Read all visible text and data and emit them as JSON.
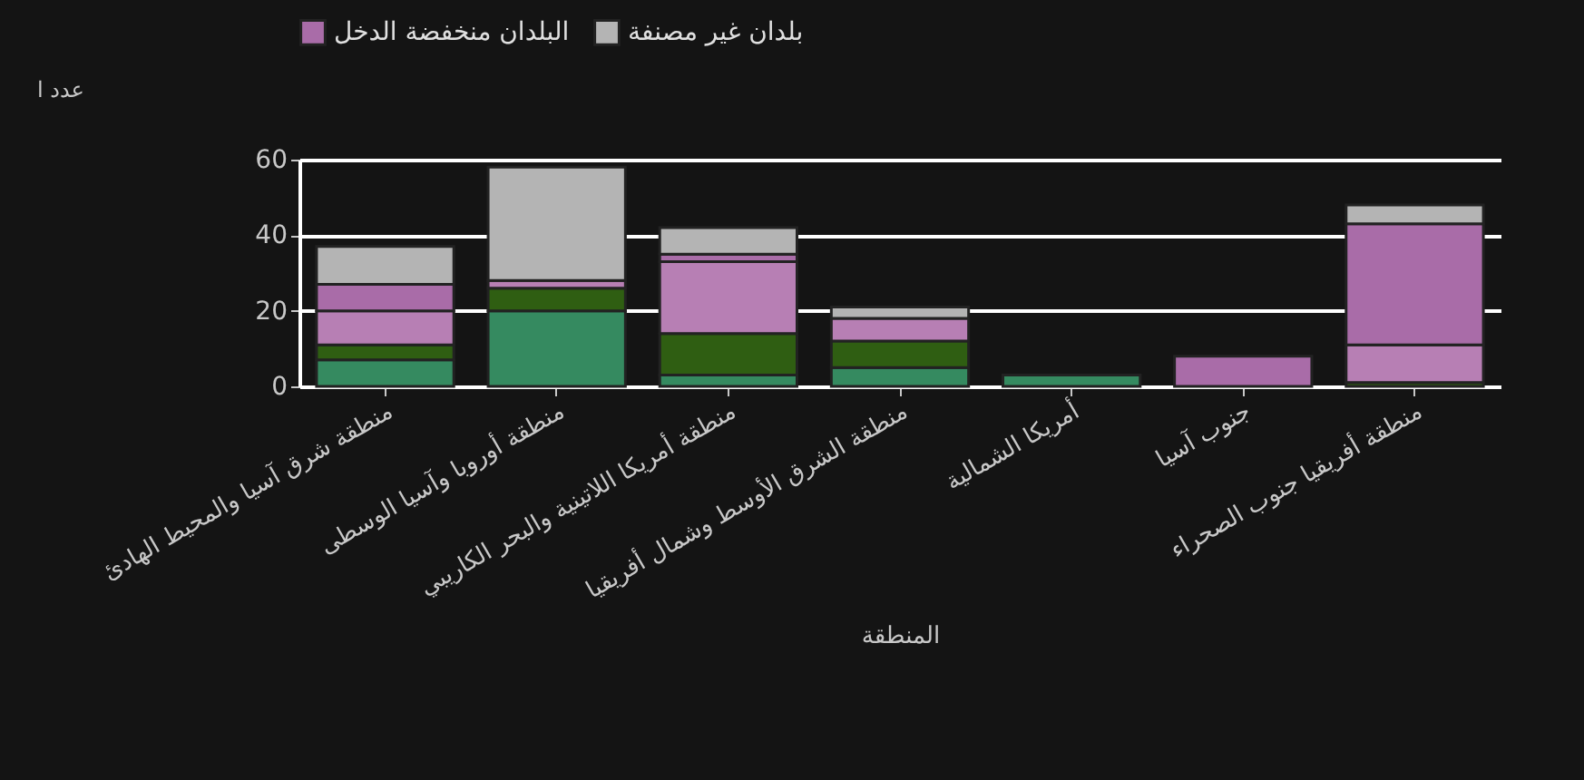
{
  "chart_data": {
    "type": "bar",
    "stacked": true,
    "xlabel": "المنطقة",
    "ylabel": "عدد ا",
    "categories": [
      "منطقة شرق آسيا والمحيط الهادئ",
      "منطقة أوروبا وآسيا الوسطى",
      "منطقة أمريكا اللاتينية والبحر الكاريبي",
      "منطقة الشرق الأوسط وشمال أفريقيا",
      "أمريكا الشمالية",
      "جنوب آسيا",
      "منطقة أفريقيا جنوب الصحراء"
    ],
    "series": [
      {
        "color": "#358a60",
        "values": [
          7,
          20,
          3,
          5,
          3,
          null,
          null
        ]
      },
      {
        "color": "#2f5e12",
        "values": [
          4,
          6,
          11,
          7,
          null,
          null,
          1
        ]
      },
      {
        "color": "#b77fb4",
        "values": [
          9,
          2,
          19,
          6,
          null,
          null,
          10
        ]
      },
      {
        "name": "البلدان منخفضة الدخل",
        "color": "#a96ca8",
        "values": [
          7,
          null,
          2,
          null,
          null,
          8,
          32
        ]
      },
      {
        "name": "بلدان غير مصنفة",
        "color": "#b4b4b4",
        "values": [
          10,
          30,
          7,
          3,
          null,
          null,
          5
        ]
      }
    ],
    "ylim": [
      0,
      60
    ],
    "yticks": [
      0,
      20,
      40,
      60
    ],
    "grid": "y",
    "legend": "top"
  }
}
